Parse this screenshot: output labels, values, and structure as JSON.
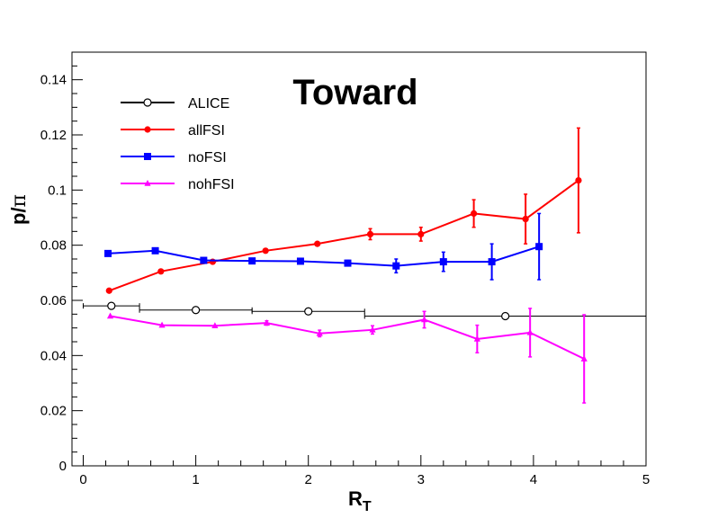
{
  "chart_data": {
    "type": "scatter",
    "title": "Toward",
    "xlabel_main": "R",
    "xlabel_sub": "T",
    "ylabel_main": "p/",
    "ylabel_greek": "π",
    "xlim": [
      -0.1,
      5.0
    ],
    "ylim": [
      0,
      0.15
    ],
    "xticks": [
      0,
      1,
      2,
      3,
      4,
      5
    ],
    "xtick_labels": [
      "0",
      "1",
      "2",
      "3",
      "4",
      "5"
    ],
    "yticks": [
      0,
      0.02,
      0.04,
      0.06,
      0.08,
      0.1,
      0.12,
      0.14
    ],
    "ytick_labels": [
      "0",
      "0.02",
      "0.04",
      "0.06",
      "0.08",
      "0.1",
      "0.12",
      "0.14"
    ],
    "grid": false,
    "legend_position": "top-left",
    "series": [
      {
        "name": "ALICE",
        "color": "#000000",
        "marker": "open-circle",
        "connect": false,
        "points": [
          {
            "x": 0.25,
            "y": 0.058,
            "xerr": 0.25,
            "yerr": 0.0008
          },
          {
            "x": 1.0,
            "y": 0.0565,
            "xerr": 0.5,
            "yerr": 0.0008
          },
          {
            "x": 2.0,
            "y": 0.056,
            "xerr": 0.5,
            "yerr": 0.0008
          },
          {
            "x": 3.75,
            "y": 0.0543,
            "xerr": 1.25,
            "yerr": 0.0012
          }
        ]
      },
      {
        "name": "allFSI",
        "color": "#ff0000",
        "marker": "filled-circle",
        "connect": true,
        "points": [
          {
            "x": 0.23,
            "y": 0.0635,
            "xerr": 0,
            "yerr": 0
          },
          {
            "x": 0.69,
            "y": 0.0705,
            "xerr": 0,
            "yerr": 0
          },
          {
            "x": 1.15,
            "y": 0.074,
            "xerr": 0,
            "yerr": 0
          },
          {
            "x": 1.62,
            "y": 0.078,
            "xerr": 0,
            "yerr": 0
          },
          {
            "x": 2.08,
            "y": 0.0805,
            "xerr": 0,
            "yerr": 0
          },
          {
            "x": 2.55,
            "y": 0.084,
            "xerr": 0,
            "yerr": 0.002
          },
          {
            "x": 3.0,
            "y": 0.084,
            "xerr": 0,
            "yerr": 0.0025
          },
          {
            "x": 3.47,
            "y": 0.0915,
            "xerr": 0,
            "yerr": 0.005
          },
          {
            "x": 3.93,
            "y": 0.0895,
            "xerr": 0,
            "yerr": 0.009
          },
          {
            "x": 4.4,
            "y": 0.1035,
            "xerr": 0,
            "yerr": 0.019
          }
        ]
      },
      {
        "name": "noFSI",
        "color": "#0000ff",
        "marker": "filled-square",
        "connect": true,
        "points": [
          {
            "x": 0.22,
            "y": 0.077,
            "xerr": 0,
            "yerr": 0
          },
          {
            "x": 0.64,
            "y": 0.078,
            "xerr": 0,
            "yerr": 0
          },
          {
            "x": 1.07,
            "y": 0.0745,
            "xerr": 0,
            "yerr": 0
          },
          {
            "x": 1.5,
            "y": 0.0743,
            "xerr": 0,
            "yerr": 0
          },
          {
            "x": 1.93,
            "y": 0.0742,
            "xerr": 0,
            "yerr": 0
          },
          {
            "x": 2.35,
            "y": 0.0735,
            "xerr": 0,
            "yerr": 0.001
          },
          {
            "x": 2.78,
            "y": 0.0725,
            "xerr": 0,
            "yerr": 0.0025
          },
          {
            "x": 3.2,
            "y": 0.074,
            "xerr": 0,
            "yerr": 0.0035
          },
          {
            "x": 3.63,
            "y": 0.074,
            "xerr": 0,
            "yerr": 0.0065
          },
          {
            "x": 4.05,
            "y": 0.0795,
            "xerr": 0,
            "yerr": 0.012
          }
        ]
      },
      {
        "name": "nohFSI",
        "color": "#ff00ff",
        "marker": "filled-triangle",
        "connect": true,
        "points": [
          {
            "x": 0.24,
            "y": 0.0543,
            "xerr": 0,
            "yerr": 0
          },
          {
            "x": 0.7,
            "y": 0.051,
            "xerr": 0,
            "yerr": 0
          },
          {
            "x": 1.17,
            "y": 0.0508,
            "xerr": 0,
            "yerr": 0
          },
          {
            "x": 1.63,
            "y": 0.0518,
            "xerr": 0,
            "yerr": 0.0008
          },
          {
            "x": 2.1,
            "y": 0.048,
            "xerr": 0,
            "yerr": 0.0012
          },
          {
            "x": 2.57,
            "y": 0.0493,
            "xerr": 0,
            "yerr": 0.0015
          },
          {
            "x": 3.03,
            "y": 0.053,
            "xerr": 0,
            "yerr": 0.003
          },
          {
            "x": 3.5,
            "y": 0.046,
            "xerr": 0,
            "yerr": 0.005
          },
          {
            "x": 3.97,
            "y": 0.0483,
            "xerr": 0,
            "yerr": 0.0088
          },
          {
            "x": 4.45,
            "y": 0.0388,
            "xerr": 0,
            "yerr": 0.016
          }
        ]
      }
    ]
  }
}
